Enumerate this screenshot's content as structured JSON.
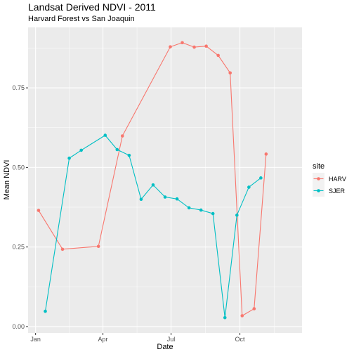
{
  "chart_data": {
    "type": "line",
    "title": "Landsat Derived NDVI - 2011",
    "subtitle": "Harvard Forest vs San Joaquin",
    "xlabel": "Date",
    "ylabel": "Mean NDVI",
    "xlim": [
      "2010-12-22",
      "2011-12-23"
    ],
    "ylim": [
      -0.02,
      0.94
    ],
    "x_ticks": [
      {
        "label": "Jan",
        "date": "2011-01-01"
      },
      {
        "label": "Apr",
        "date": "2011-04-01"
      },
      {
        "label": "Jul",
        "date": "2011-07-01"
      },
      {
        "label": "Oct",
        "date": "2011-10-01"
      }
    ],
    "y_ticks": [
      {
        "label": "0.00",
        "value": 0.0
      },
      {
        "label": "0.25",
        "value": 0.25
      },
      {
        "label": "0.50",
        "value": 0.5
      },
      {
        "label": "0.75",
        "value": 0.75
      }
    ],
    "grid": true,
    "legend": {
      "title": "site",
      "position": "right"
    },
    "series": [
      {
        "name": "HARV",
        "color": "#F8766D",
        "points": [
          {
            "x": "2011-01-05",
            "y": 0.365
          },
          {
            "x": "2011-02-06",
            "y": 0.243
          },
          {
            "x": "2011-03-26",
            "y": 0.252
          },
          {
            "x": "2011-04-27",
            "y": 0.599
          },
          {
            "x": "2011-06-30",
            "y": 0.879
          },
          {
            "x": "2011-07-16",
            "y": 0.892
          },
          {
            "x": "2011-08-01",
            "y": 0.878
          },
          {
            "x": "2011-08-17",
            "y": 0.881
          },
          {
            "x": "2011-09-02",
            "y": 0.852
          },
          {
            "x": "2011-09-18",
            "y": 0.797
          },
          {
            "x": "2011-10-04",
            "y": 0.034
          },
          {
            "x": "2011-10-20",
            "y": 0.056
          },
          {
            "x": "2011-11-05",
            "y": 0.542
          }
        ]
      },
      {
        "name": "SJER",
        "color": "#00BFC4",
        "points": [
          {
            "x": "2011-01-14",
            "y": 0.048
          },
          {
            "x": "2011-02-15",
            "y": 0.529
          },
          {
            "x": "2011-03-03",
            "y": 0.554
          },
          {
            "x": "2011-04-04",
            "y": 0.601
          },
          {
            "x": "2011-04-20",
            "y": 0.556
          },
          {
            "x": "2011-05-06",
            "y": 0.538
          },
          {
            "x": "2011-05-22",
            "y": 0.4
          },
          {
            "x": "2011-06-07",
            "y": 0.445
          },
          {
            "x": "2011-06-23",
            "y": 0.407
          },
          {
            "x": "2011-07-09",
            "y": 0.401
          },
          {
            "x": "2011-07-25",
            "y": 0.373
          },
          {
            "x": "2011-08-10",
            "y": 0.366
          },
          {
            "x": "2011-08-26",
            "y": 0.355
          },
          {
            "x": "2011-09-11",
            "y": 0.028
          },
          {
            "x": "2011-09-27",
            "y": 0.35
          },
          {
            "x": "2011-10-13",
            "y": 0.438
          },
          {
            "x": "2011-10-29",
            "y": 0.467
          }
        ]
      }
    ]
  }
}
